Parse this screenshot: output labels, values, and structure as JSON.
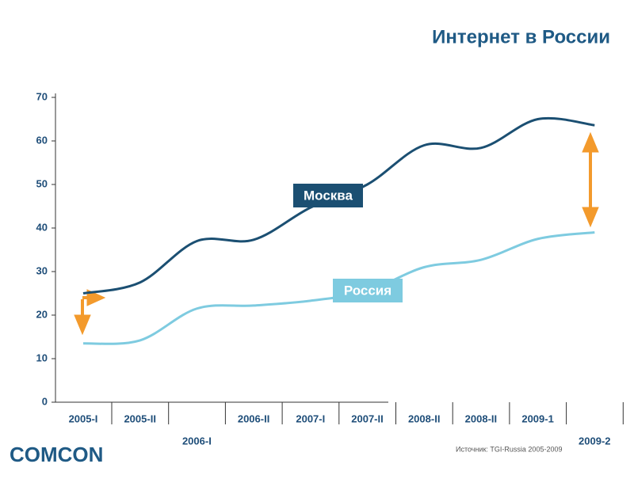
{
  "chart_data": {
    "type": "line",
    "title": "Интернет в России",
    "categories": [
      "2005-I",
      "2005-II",
      "2006-I",
      "2006-II",
      "2007-I",
      "2007-II",
      "2008-II",
      "2008-II",
      "2009-1",
      "2009-2"
    ],
    "series": [
      {
        "name": "Москва",
        "color": "#1b4f72",
        "values": [
          25,
          27.5,
          37,
          37.3,
          44.7,
          50,
          59,
          58.4,
          65,
          63.6
        ]
      },
      {
        "name": "Россия",
        "color": "#7ecbe0",
        "values": [
          13.5,
          14.2,
          21.5,
          22.2,
          23.3,
          25.5,
          31,
          32.7,
          37.5,
          39
        ]
      }
    ],
    "ylim": [
      0,
      70
    ],
    "yticks": [
      0,
      10,
      20,
      30,
      40,
      50,
      60,
      70
    ],
    "source": "Источник: TGI-Russia 2005-2009",
    "logo": "COMCON"
  }
}
